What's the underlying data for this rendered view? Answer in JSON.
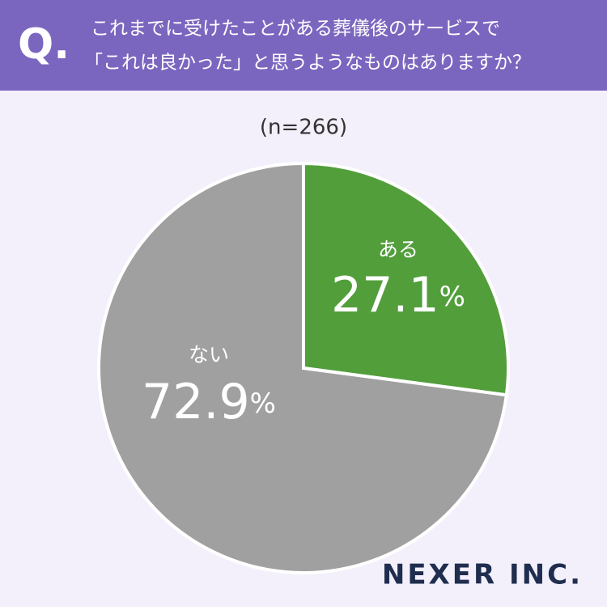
{
  "header": {
    "mark": "Q.",
    "question": [
      "これまでに受けたことがある葬儀後のサービスで",
      "「これは良かった」と思うようなものはありますか？"
    ]
  },
  "chart_data": {
    "type": "pie",
    "subtitle": "(n=266)",
    "categories": [
      "ある",
      "ない"
    ],
    "values": [
      27.1,
      72.9
    ],
    "value_labels": [
      "27.1%",
      "72.9%"
    ],
    "colors": [
      "#529e3b",
      "#a0a0a0"
    ]
  },
  "logo": "NEXER INC."
}
